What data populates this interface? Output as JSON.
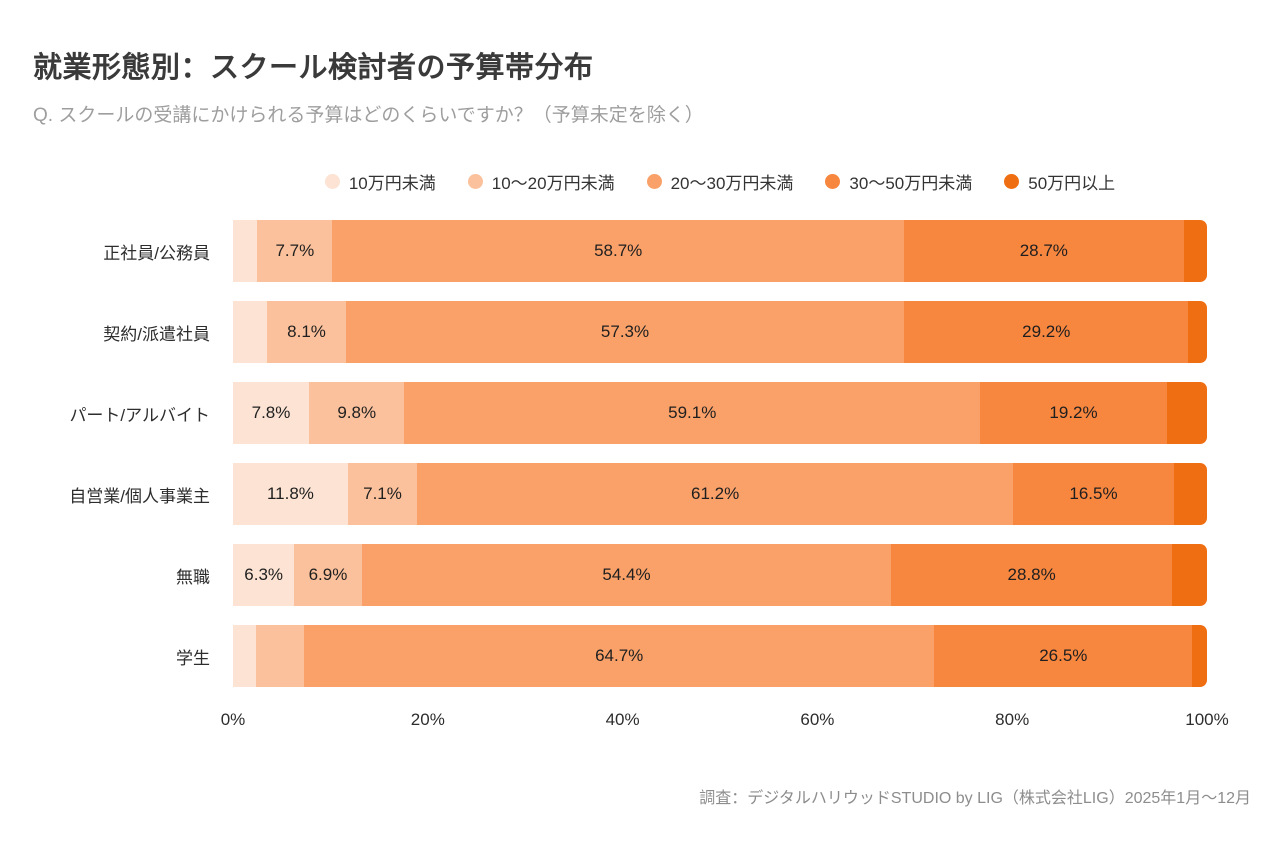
{
  "title": "就業形態別：スクール検討者の予算帯分布",
  "subtitle": "Q. スクールの受講にかけられる予算はどのくらいですか？（予算未定を除く）",
  "footer": "調査：デジタルハリウッドSTUDIO by LIG（株式会社LIG）2025年1月〜12月",
  "chart_data": {
    "type": "bar",
    "stacked": true,
    "orientation": "horizontal",
    "title": "就業形態別：スクール検討者の予算帯分布",
    "categories": [
      "正社員/公務員",
      "契約/派遣社員",
      "パート/アルバイト",
      "自営業/個人事業主",
      "無職",
      "学生"
    ],
    "series": [
      {
        "name": "10万円未満",
        "color": "#fce3d3",
        "values": [
          2.5,
          3.5,
          7.8,
          11.8,
          6.3,
          2.4
        ]
      },
      {
        "name": "10〜20万円未満",
        "color": "#fbc19c",
        "values": [
          7.7,
          8.1,
          9.8,
          7.1,
          6.9,
          4.9
        ]
      },
      {
        "name": "20〜30万円未満",
        "color": "#f9a169",
        "values": [
          58.7,
          57.3,
          59.1,
          61.2,
          54.4,
          64.7
        ]
      },
      {
        "name": "30〜50万円未満",
        "color": "#f7863f",
        "values": [
          28.7,
          29.2,
          19.2,
          16.5,
          28.8,
          26.5
        ]
      },
      {
        "name": "50万円以上",
        "color": "#f06e12",
        "values": [
          2.4,
          1.9,
          4.1,
          3.4,
          3.6,
          1.5
        ]
      }
    ],
    "xticks": [
      "0%",
      "20%",
      "40%",
      "60%",
      "80%",
      "100%"
    ],
    "xlim": [
      0,
      100
    ],
    "grid": false,
    "legend_position": "top-center",
    "label_threshold": 6
  }
}
